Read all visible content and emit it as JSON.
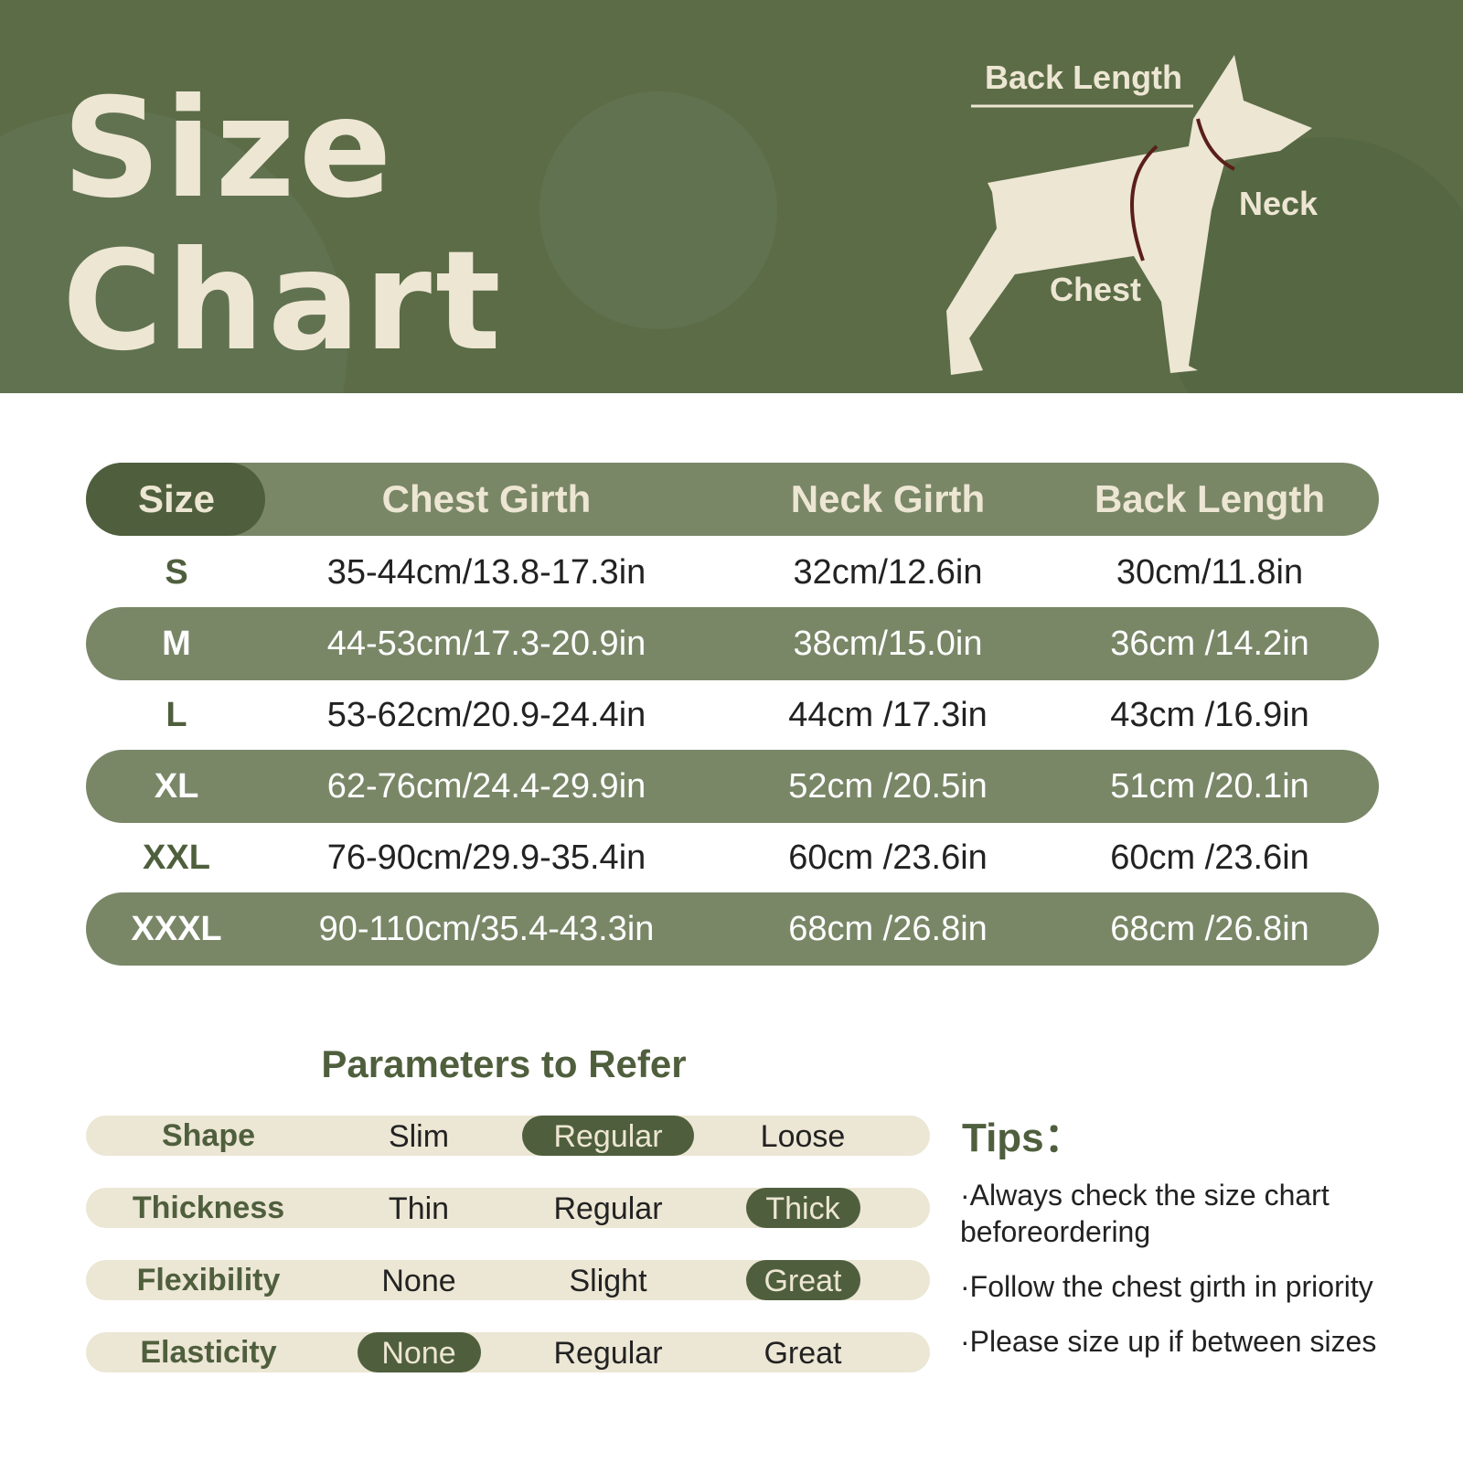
{
  "header": {
    "title_lines": [
      "Size",
      "Chart"
    ],
    "diagram_labels": {
      "back": "Back Length",
      "neck": "Neck",
      "chest": "Chest"
    }
  },
  "table": {
    "columns": [
      "Size",
      "Chest Girth",
      "Neck Girth",
      "Back Length"
    ],
    "rows": [
      [
        "S",
        "35-44cm/13.8-17.3in",
        "32cm/12.6in",
        "30cm/11.8in"
      ],
      [
        "M",
        "44-53cm/17.3-20.9in",
        "38cm/15.0in",
        "36cm /14.2in"
      ],
      [
        "L",
        "53-62cm/20.9-24.4in",
        "44cm /17.3in",
        "43cm /16.9in"
      ],
      [
        "XL",
        "62-76cm/24.4-29.9in",
        "52cm /20.5in",
        "51cm /20.1in"
      ],
      [
        "XXL",
        "76-90cm/29.9-35.4in",
        "60cm /23.6in",
        "60cm /23.6in"
      ],
      [
        "XXXL",
        "90-110cm/35.4-43.3in",
        "68cm /26.8in",
        "68cm /26.8in"
      ]
    ]
  },
  "parameters": {
    "title": "Parameters to Refer",
    "rows": [
      {
        "label": "Shape",
        "options": [
          "Slim",
          "Regular",
          "Loose"
        ],
        "selected": 1
      },
      {
        "label": "Thickness",
        "options": [
          "Thin",
          "Regular",
          "Thick"
        ],
        "selected": 2
      },
      {
        "label": "Flexibility",
        "options": [
          "None",
          "Slight",
          "Great"
        ],
        "selected": 2
      },
      {
        "label": "Elasticity",
        "options": [
          "None",
          "Regular",
          "Great"
        ],
        "selected": 0
      }
    ]
  },
  "tips": {
    "title": "Tips：",
    "items": [
      "·Always check the size chart beforeordering",
      "·Follow the chest girth in priority",
      "·Please size up if between sizes"
    ]
  }
}
